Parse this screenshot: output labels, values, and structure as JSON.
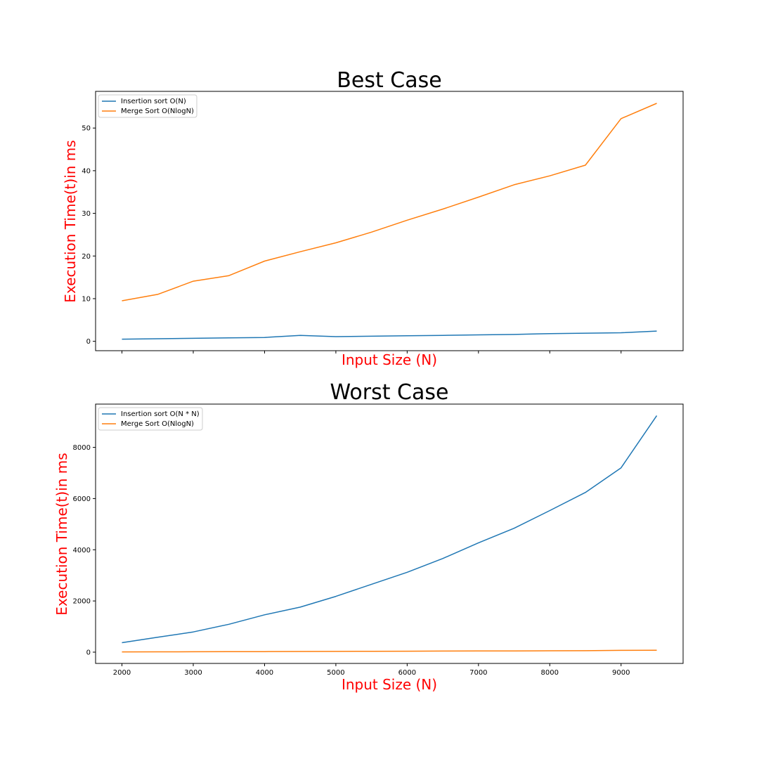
{
  "colors": {
    "insertion": "#1f77b4",
    "merge": "#ff7f0e",
    "axis_label": "#ff0000",
    "frame": "#000000",
    "legend_border": "#cccccc"
  },
  "chart_data": [
    {
      "type": "line",
      "title": "Best Case",
      "xlabel": "Input Size (N)",
      "ylabel": "Execution Time(t)in ms",
      "x": [
        2000,
        2500,
        3000,
        3500,
        4000,
        4500,
        5000,
        5500,
        6000,
        6500,
        7000,
        7500,
        8000,
        8500,
        9000,
        9500
      ],
      "xlim": [
        1630,
        9870
      ],
      "ylim": [
        -2.2,
        58.6
      ],
      "yticks": [
        0,
        10,
        20,
        30,
        40,
        50
      ],
      "xticks": [
        2000,
        3000,
        4000,
        5000,
        6000,
        7000,
        8000,
        9000
      ],
      "show_xtick_labels": false,
      "grid": false,
      "legend_position": "top-left",
      "series": [
        {
          "name": "Insertion sort O(N)",
          "color_key": "insertion",
          "values": [
            0.5,
            0.6,
            0.7,
            0.8,
            0.9,
            1.4,
            1.1,
            1.2,
            1.3,
            1.4,
            1.5,
            1.6,
            1.8,
            1.9,
            2.0,
            2.4
          ]
        },
        {
          "name": "Merge Sort O(NlogN)",
          "color_key": "merge",
          "values": [
            9.5,
            11.0,
            14.1,
            15.4,
            18.8,
            21.0,
            23.1,
            25.6,
            28.4,
            31.0,
            33.8,
            36.7,
            38.8,
            41.3,
            52.2,
            55.8
          ]
        }
      ]
    },
    {
      "type": "line",
      "title": "Worst Case",
      "xlabel": "Input Size (N)",
      "ylabel": "Execution Time(t)in ms",
      "x": [
        2000,
        2500,
        3000,
        3500,
        4000,
        4500,
        5000,
        5500,
        6000,
        6500,
        7000,
        7500,
        8000,
        8500,
        9000,
        9500
      ],
      "xlim": [
        1630,
        9870
      ],
      "ylim": [
        -440,
        9690
      ],
      "yticks": [
        0,
        2000,
        4000,
        6000,
        8000
      ],
      "xticks": [
        2000,
        3000,
        4000,
        5000,
        6000,
        7000,
        8000,
        9000
      ],
      "show_xtick_labels": true,
      "grid": false,
      "legend_position": "top-left",
      "series": [
        {
          "name": "Insertion sort O(N * N)",
          "color_key": "insertion",
          "values": [
            370,
            580,
            790,
            1090,
            1460,
            1760,
            2180,
            2650,
            3120,
            3660,
            4270,
            4840,
            5530,
            6240,
            7200,
            9240
          ]
        },
        {
          "name": "Merge Sort O(NlogN)",
          "color_key": "merge",
          "values": [
            10,
            12,
            15,
            18,
            22,
            26,
            30,
            34,
            38,
            42,
            46,
            50,
            54,
            58,
            70,
            75
          ]
        }
      ]
    }
  ]
}
